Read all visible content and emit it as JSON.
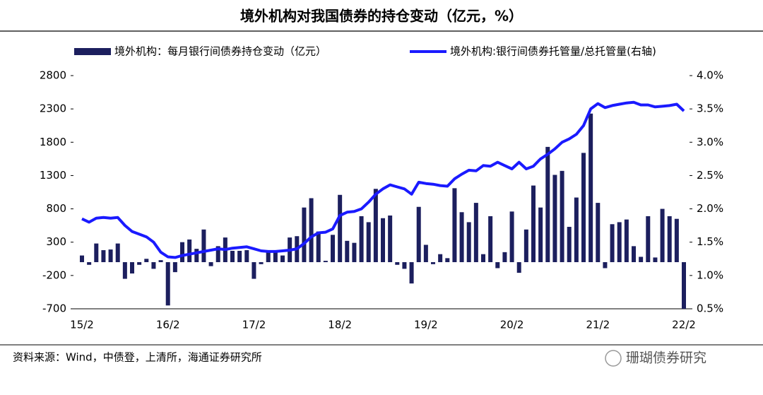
{
  "chart_data": {
    "type": "bar_line",
    "title": "境外机构对我国债券的持仓变动（亿元，%）",
    "source": "资料来源：Wind，中债登，上清所，海通证券研究所",
    "watermark": "珊瑚债券研究",
    "categories": [
      "15/2",
      null,
      null,
      null,
      null,
      null,
      null,
      null,
      null,
      null,
      null,
      null,
      "16/2",
      null,
      null,
      null,
      null,
      null,
      null,
      null,
      null,
      null,
      null,
      null,
      "17/2",
      null,
      null,
      null,
      null,
      null,
      null,
      null,
      null,
      null,
      null,
      null,
      "18/2",
      null,
      null,
      null,
      null,
      null,
      null,
      null,
      null,
      null,
      null,
      null,
      "19/2",
      null,
      null,
      null,
      null,
      null,
      null,
      null,
      null,
      null,
      null,
      null,
      "20/2",
      null,
      null,
      null,
      null,
      null,
      null,
      null,
      null,
      null,
      null,
      null,
      "21/2",
      null,
      null,
      null,
      null,
      null,
      null,
      null,
      null,
      null,
      null,
      null,
      "22/2"
    ],
    "series": [
      {
        "name": "境外机构：每月银行间债券持仓变动（亿元）",
        "type": "bar",
        "color": "#1c1f5e",
        "values": [
          100,
          -40,
          280,
          180,
          190,
          280,
          -250,
          -170,
          -40,
          50,
          -100,
          30,
          -650,
          -150,
          300,
          340,
          200,
          490,
          -60,
          240,
          370,
          170,
          170,
          180,
          -250,
          -30,
          160,
          160,
          100,
          370,
          390,
          820,
          960,
          460,
          20,
          410,
          1010,
          320,
          290,
          690,
          600,
          1100,
          660,
          700,
          -40,
          -100,
          -320,
          830,
          260,
          -30,
          120,
          60,
          1110,
          750,
          600,
          890,
          120,
          690,
          -90,
          150,
          760,
          -160,
          490,
          1150,
          820,
          1730,
          1310,
          1370,
          530,
          970,
          1640,
          2230,
          890,
          -90,
          570,
          600,
          640,
          240,
          80,
          690,
          70,
          800,
          690,
          650,
          -700
        ]
      },
      {
        "name": "境外机构:银行间债券托管量/总托管量(右轴)",
        "type": "line",
        "axis": "y2",
        "color": "#1a1aff",
        "values": [
          1.85,
          1.8,
          1.86,
          1.87,
          1.86,
          1.87,
          1.75,
          1.66,
          1.62,
          1.58,
          1.5,
          1.35,
          1.28,
          1.27,
          1.3,
          1.32,
          1.34,
          1.36,
          1.38,
          1.4,
          1.39,
          1.41,
          1.42,
          1.43,
          1.4,
          1.37,
          1.36,
          1.36,
          1.37,
          1.38,
          1.4,
          1.48,
          1.58,
          1.64,
          1.65,
          1.7,
          1.9,
          1.95,
          1.96,
          2.0,
          2.1,
          2.22,
          2.3,
          2.36,
          2.33,
          2.3,
          2.22,
          2.4,
          2.38,
          2.37,
          2.35,
          2.34,
          2.45,
          2.52,
          2.58,
          2.57,
          2.65,
          2.64,
          2.7,
          2.65,
          2.6,
          2.7,
          2.6,
          2.64,
          2.75,
          2.82,
          2.9,
          3.0,
          3.05,
          3.12,
          3.25,
          3.5,
          3.58,
          3.52,
          3.55,
          3.57,
          3.59,
          3.6,
          3.56,
          3.56,
          3.53,
          3.54,
          3.55,
          3.57,
          3.47
        ]
      }
    ],
    "ylim": [
      -700,
      2800
    ],
    "yticks": [
      -700,
      -200,
      300,
      800,
      1300,
      1800,
      2300,
      2800
    ],
    "y2lim": [
      0.5,
      4.0
    ],
    "y2ticks": [
      {
        "value": 0.5,
        "label": "0.5%"
      },
      {
        "value": 1.0,
        "label": "1.0%"
      },
      {
        "value": 1.5,
        "label": "1.5%"
      },
      {
        "value": 2.0,
        "label": "2.0%"
      },
      {
        "value": 2.5,
        "label": "2.5%"
      },
      {
        "value": 3.0,
        "label": "3.0%"
      },
      {
        "value": 3.5,
        "label": "3.5%"
      },
      {
        "value": 4.0,
        "label": "4.0%"
      }
    ],
    "legend": "top",
    "grid": false
  }
}
